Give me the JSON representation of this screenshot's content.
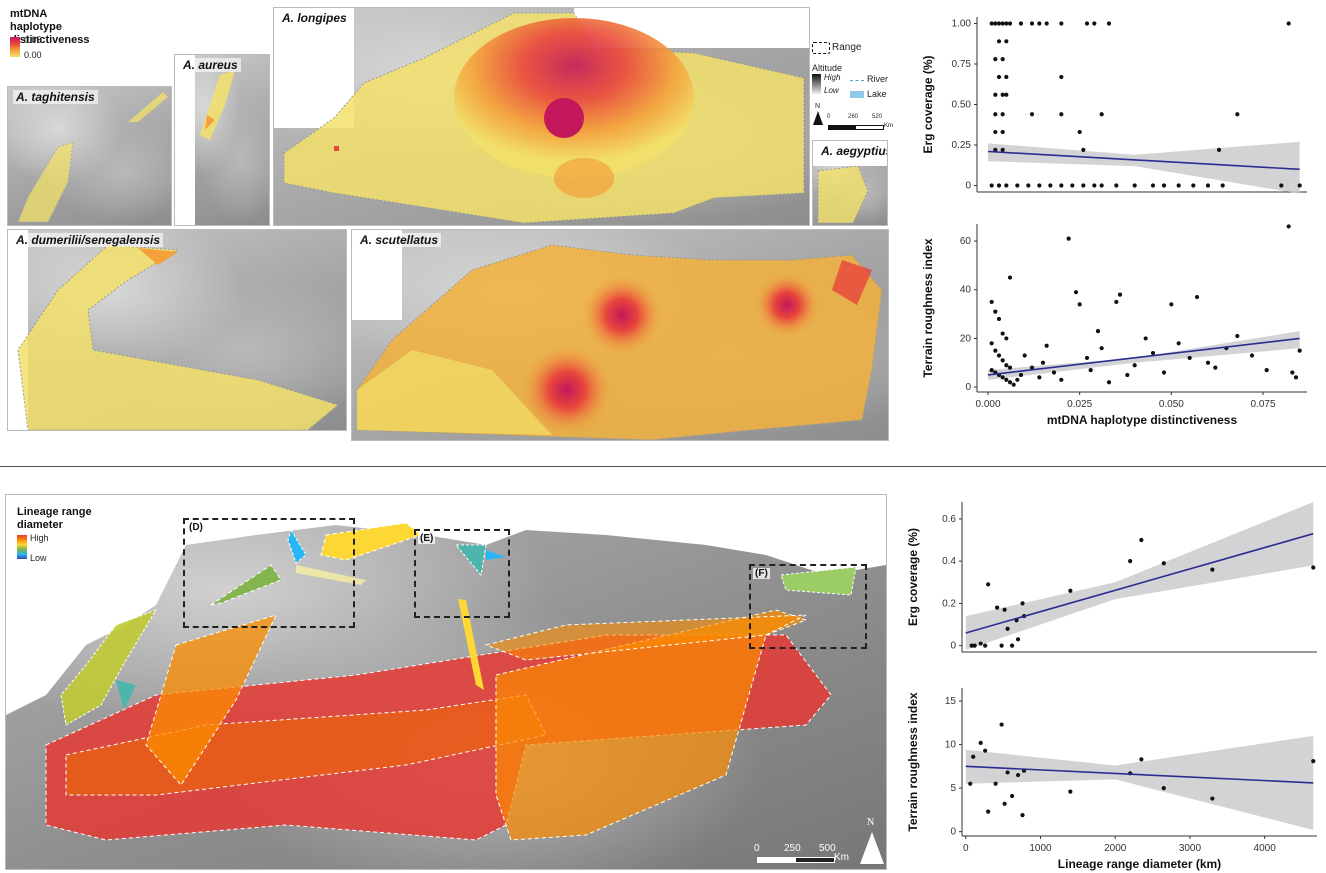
{
  "legend_top": {
    "title_line1": "mtDNA haplotype",
    "title_line2": "distinctiveness",
    "max": "0.05",
    "min": "0.00",
    "colors": [
      "#c2185b",
      "#e8453c",
      "#f4a13c",
      "#f2e06a"
    ]
  },
  "map_legend": {
    "range": "Range",
    "altitude": "Altitude",
    "high": "High",
    "low": "Low",
    "river": "River",
    "lake": "Lake",
    "north": "N",
    "scale": [
      "0",
      "260",
      "520"
    ],
    "scale_unit": "Km"
  },
  "panels_top": [
    {
      "key": "taghitensis",
      "title": "A. taghitensis"
    },
    {
      "key": "aureus",
      "title": "A. aureus"
    },
    {
      "key": "longipes",
      "title": "A. longipes"
    },
    {
      "key": "aegyptius",
      "title": "A. aegyptius"
    },
    {
      "key": "dumerilii",
      "title": "A. dumerilii/senegalensis"
    },
    {
      "key": "scutellatus",
      "title": "A. scutellatus"
    }
  ],
  "legend_bottom": {
    "title_line1": "Lineage range",
    "title_line2": "diameter",
    "high": "High",
    "low": "Low",
    "colors": [
      "#e53935",
      "#fb8c00",
      "#fdd835",
      "#7cb342",
      "#29b6f6",
      "#3949ab"
    ]
  },
  "bottom_map": {
    "boxes": [
      "(D)",
      "(E)",
      "(F)"
    ],
    "scale": [
      "0",
      "250",
      "500"
    ],
    "scale_unit": "Km",
    "north": "N"
  },
  "chart_data": [
    {
      "type": "scatter",
      "id": "A",
      "xlabel": "",
      "ylabel": "Erg coverage (%)",
      "xlim": [
        -0.003,
        0.087
      ],
      "ylim": [
        -0.04,
        1.04
      ],
      "yticks": [
        0,
        0.25,
        0.5,
        0.75,
        1.0
      ],
      "ytick_labels": [
        "0",
        "0.25",
        "0.50",
        "0.75",
        "1.00"
      ],
      "trend": [
        [
          0,
          0.21
        ],
        [
          0.085,
          0.1
        ]
      ],
      "band": [
        [
          0,
          0.15,
          0.26
        ],
        [
          0.04,
          0.12,
          0.19
        ],
        [
          0.085,
          -0.05,
          0.27
        ]
      ],
      "points": [
        [
          0.001,
          1
        ],
        [
          0.002,
          1
        ],
        [
          0.003,
          1
        ],
        [
          0.004,
          1
        ],
        [
          0.005,
          1
        ],
        [
          0.006,
          1
        ],
        [
          0.009,
          1
        ],
        [
          0.012,
          1
        ],
        [
          0.014,
          1
        ],
        [
          0.016,
          1
        ],
        [
          0.02,
          1
        ],
        [
          0.027,
          1
        ],
        [
          0.029,
          1
        ],
        [
          0.033,
          1
        ],
        [
          0.082,
          1
        ],
        [
          0.003,
          0.89
        ],
        [
          0.005,
          0.89
        ],
        [
          0.002,
          0.78
        ],
        [
          0.004,
          0.78
        ],
        [
          0.003,
          0.67
        ],
        [
          0.005,
          0.67
        ],
        [
          0.02,
          0.67
        ],
        [
          0.002,
          0.56
        ],
        [
          0.004,
          0.56
        ],
        [
          0.005,
          0.56
        ],
        [
          0.002,
          0.44
        ],
        [
          0.004,
          0.44
        ],
        [
          0.012,
          0.44
        ],
        [
          0.02,
          0.44
        ],
        [
          0.031,
          0.44
        ],
        [
          0.068,
          0.44
        ],
        [
          0.002,
          0.33
        ],
        [
          0.004,
          0.33
        ],
        [
          0.025,
          0.33
        ],
        [
          0.002,
          0.22
        ],
        [
          0.004,
          0.22
        ],
        [
          0.026,
          0.22
        ],
        [
          0.063,
          0.22
        ],
        [
          0.001,
          0
        ],
        [
          0.003,
          0
        ],
        [
          0.005,
          0
        ],
        [
          0.008,
          0
        ],
        [
          0.011,
          0
        ],
        [
          0.014,
          0
        ],
        [
          0.017,
          0
        ],
        [
          0.02,
          0
        ],
        [
          0.023,
          0
        ],
        [
          0.026,
          0
        ],
        [
          0.029,
          0
        ],
        [
          0.031,
          0
        ],
        [
          0.035,
          0
        ],
        [
          0.04,
          0
        ],
        [
          0.045,
          0
        ],
        [
          0.048,
          0
        ],
        [
          0.052,
          0
        ],
        [
          0.056,
          0
        ],
        [
          0.06,
          0
        ],
        [
          0.064,
          0
        ],
        [
          0.08,
          0
        ],
        [
          0.085,
          0
        ]
      ]
    },
    {
      "type": "scatter",
      "id": "B",
      "xlabel": "mtDNA haplotype distinctiveness",
      "ylabel": "Terrain roughness index",
      "xlim": [
        -0.003,
        0.087
      ],
      "ylim": [
        -2,
        67
      ],
      "yticks": [
        0,
        20,
        40,
        60
      ],
      "ytick_labels": [
        "0",
        "20",
        "40",
        "60"
      ],
      "xticks": [
        0,
        0.025,
        0.05,
        0.075
      ],
      "xtick_labels": [
        "0.000",
        "0.025",
        "0.050",
        "0.075"
      ],
      "trend": [
        [
          0,
          5
        ],
        [
          0.085,
          20
        ]
      ],
      "band": [
        [
          0,
          3,
          7
        ],
        [
          0.04,
          10,
          12
        ],
        [
          0.085,
          16,
          23
        ]
      ],
      "points": [
        [
          0.001,
          35
        ],
        [
          0.002,
          31
        ],
        [
          0.003,
          28
        ],
        [
          0.004,
          22
        ],
        [
          0.005,
          20
        ],
        [
          0.001,
          18
        ],
        [
          0.002,
          15
        ],
        [
          0.003,
          13
        ],
        [
          0.004,
          11
        ],
        [
          0.005,
          9
        ],
        [
          0.006,
          8
        ],
        [
          0.001,
          7
        ],
        [
          0.002,
          6
        ],
        [
          0.003,
          5
        ],
        [
          0.004,
          4
        ],
        [
          0.005,
          3
        ],
        [
          0.006,
          2
        ],
        [
          0.007,
          1
        ],
        [
          0.008,
          3
        ],
        [
          0.009,
          5
        ],
        [
          0.006,
          45
        ],
        [
          0.01,
          13
        ],
        [
          0.012,
          8
        ],
        [
          0.014,
          4
        ],
        [
          0.015,
          10
        ],
        [
          0.016,
          17
        ],
        [
          0.018,
          6
        ],
        [
          0.02,
          3
        ],
        [
          0.022,
          61
        ],
        [
          0.024,
          39
        ],
        [
          0.025,
          34
        ],
        [
          0.027,
          12
        ],
        [
          0.028,
          7
        ],
        [
          0.03,
          23
        ],
        [
          0.031,
          16
        ],
        [
          0.033,
          2
        ],
        [
          0.035,
          35
        ],
        [
          0.036,
          38
        ],
        [
          0.038,
          5
        ],
        [
          0.04,
          9
        ],
        [
          0.043,
          20
        ],
        [
          0.045,
          14
        ],
        [
          0.048,
          6
        ],
        [
          0.05,
          34
        ],
        [
          0.052,
          18
        ],
        [
          0.055,
          12
        ],
        [
          0.057,
          37
        ],
        [
          0.06,
          10
        ],
        [
          0.062,
          8
        ],
        [
          0.065,
          16
        ],
        [
          0.068,
          21
        ],
        [
          0.072,
          13
        ],
        [
          0.076,
          7
        ],
        [
          0.082,
          66
        ],
        [
          0.083,
          6
        ],
        [
          0.084,
          4
        ],
        [
          0.085,
          15
        ]
      ]
    },
    {
      "type": "scatter",
      "id": "C",
      "xlabel": "",
      "ylabel": "Erg coverage (%)",
      "xlim": [
        -50,
        4700
      ],
      "ylim": [
        -0.03,
        0.68
      ],
      "yticks": [
        0,
        0.2,
        0.4,
        0.6
      ],
      "ytick_labels": [
        "0",
        "0.2",
        "0.4",
        "0.6"
      ],
      "trend": [
        [
          0,
          0.06
        ],
        [
          4650,
          0.53
        ]
      ],
      "band": [
        [
          0,
          -0.02,
          0.14
        ],
        [
          2000,
          0.22,
          0.3
        ],
        [
          4650,
          0.38,
          0.68
        ]
      ],
      "points": [
        [
          80,
          0.0
        ],
        [
          120,
          0.0
        ],
        [
          200,
          0.01
        ],
        [
          260,
          0.0
        ],
        [
          300,
          0.29
        ],
        [
          420,
          0.18
        ],
        [
          480,
          0.0
        ],
        [
          520,
          0.17
        ],
        [
          560,
          0.08
        ],
        [
          620,
          0.0
        ],
        [
          680,
          0.12
        ],
        [
          700,
          0.03
        ],
        [
          760,
          0.2
        ],
        [
          780,
          0.14
        ],
        [
          1400,
          0.26
        ],
        [
          2200,
          0.4
        ],
        [
          2350,
          0.5
        ],
        [
          2650,
          0.39
        ],
        [
          3300,
          0.36
        ],
        [
          4650,
          0.37
        ]
      ]
    },
    {
      "type": "scatter",
      "id": "D",
      "xlabel": "Lineage range diameter (km)",
      "ylabel": "Terrain roughness index",
      "xlim": [
        -50,
        4700
      ],
      "ylim": [
        -0.5,
        16.5
      ],
      "yticks": [
        0,
        5,
        10,
        15
      ],
      "ytick_labels": [
        "0",
        "5",
        "10",
        "15"
      ],
      "xticks": [
        0,
        1000,
        2000,
        3000,
        4000
      ],
      "xtick_labels": [
        "0",
        "1000",
        "2000",
        "3000",
        "4000"
      ],
      "trend": [
        [
          0,
          7.5
        ],
        [
          4650,
          5.6
        ]
      ],
      "band": [
        [
          0,
          5.5,
          9.4
        ],
        [
          2000,
          6.0,
          7.6
        ],
        [
          4650,
          0.2,
          11
        ]
      ],
      "points": [
        [
          60,
          5.5
        ],
        [
          100,
          8.6
        ],
        [
          200,
          10.2
        ],
        [
          260,
          9.3
        ],
        [
          300,
          2.3
        ],
        [
          400,
          5.5
        ],
        [
          480,
          12.3
        ],
        [
          520,
          3.2
        ],
        [
          560,
          6.8
        ],
        [
          620,
          4.1
        ],
        [
          700,
          6.5
        ],
        [
          760,
          1.9
        ],
        [
          780,
          7.0
        ],
        [
          1400,
          4.6
        ],
        [
          2200,
          6.7
        ],
        [
          2350,
          8.3
        ],
        [
          2650,
          5.0
        ],
        [
          3300,
          3.8
        ],
        [
          4650,
          8.1
        ]
      ]
    }
  ]
}
